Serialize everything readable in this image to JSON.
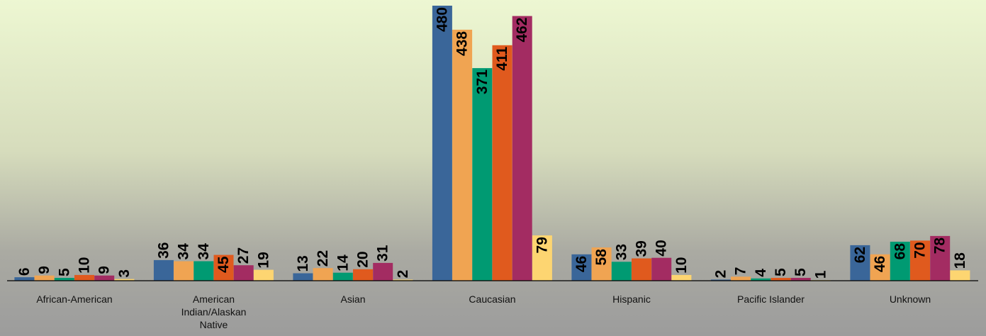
{
  "chart_data": {
    "type": "bar",
    "title": "",
    "xlabel": "",
    "ylabel": "",
    "ylim": [
      0,
      480
    ],
    "grid": false,
    "legend": "none",
    "categories": [
      [
        "African-American"
      ],
      [
        "American",
        "Indian/Alaskan",
        "Native"
      ],
      [
        "Asian"
      ],
      [
        "Caucasian"
      ],
      [
        "Hispanic"
      ],
      [
        "Pacific Islander"
      ],
      [
        "Unknown"
      ]
    ],
    "series": [
      {
        "color": "#3a6699",
        "values": [
          6,
          36,
          13,
          480,
          46,
          2,
          62
        ]
      },
      {
        "color": "#f0a452",
        "values": [
          9,
          34,
          22,
          438,
          58,
          7,
          46
        ]
      },
      {
        "color": "#009a72",
        "values": [
          5,
          34,
          14,
          371,
          33,
          4,
          68
        ]
      },
      {
        "color": "#e05a1e",
        "values": [
          10,
          45,
          20,
          411,
          39,
          5,
          70
        ]
      },
      {
        "color": "#a32c62",
        "values": [
          9,
          27,
          31,
          462,
          40,
          5,
          78
        ]
      },
      {
        "color": "#fdd571",
        "values": [
          3,
          19,
          2,
          79,
          10,
          1,
          18
        ]
      }
    ]
  }
}
